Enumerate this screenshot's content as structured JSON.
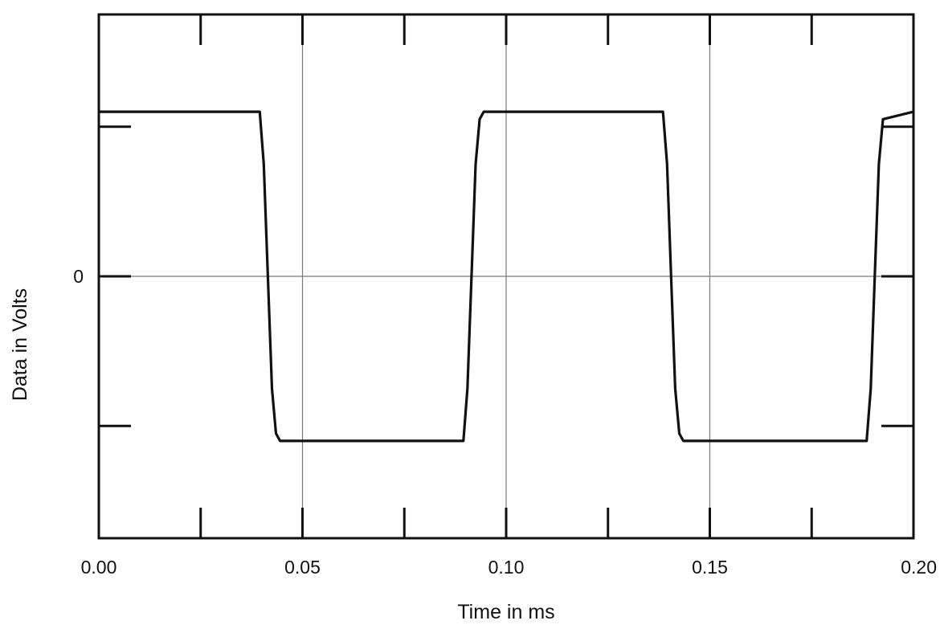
{
  "chart_data": {
    "type": "line",
    "title": "",
    "xlabel": "Time in ms",
    "ylabel": "Data in Volts",
    "xlim": [
      0.0,
      0.2
    ],
    "ylim": [
      -1.75,
      1.75
    ],
    "x_ticks": [
      0.0,
      0.05,
      0.1,
      0.15,
      0.2
    ],
    "x_tick_labels": [
      "0.00",
      "0.05",
      "0.10",
      "0.15",
      "0.20"
    ],
    "y_ticks": [
      0
    ],
    "y_tick_labels": [
      "0"
    ],
    "grid": true,
    "legend": "none",
    "series": [
      {
        "x": [
          0.0,
          0.0395,
          0.0405,
          0.0415,
          0.0425,
          0.0435,
          0.0445,
          0.0895,
          0.0905,
          0.0915,
          0.0925,
          0.0935,
          0.0945,
          0.1385,
          0.1395,
          0.1405,
          0.1415,
          0.1425,
          0.1435,
          0.1885,
          0.1895,
          0.1905,
          0.1915,
          0.1925,
          0.2
        ],
        "y": [
          1.1,
          1.1,
          0.75,
          0.0,
          -0.75,
          -1.05,
          -1.1,
          -1.1,
          -0.75,
          0.0,
          0.75,
          1.05,
          1.1,
          1.1,
          0.75,
          0.0,
          -0.75,
          -1.05,
          -1.1,
          -1.1,
          -0.75,
          0.0,
          0.75,
          1.05,
          1.1
        ]
      }
    ]
  }
}
